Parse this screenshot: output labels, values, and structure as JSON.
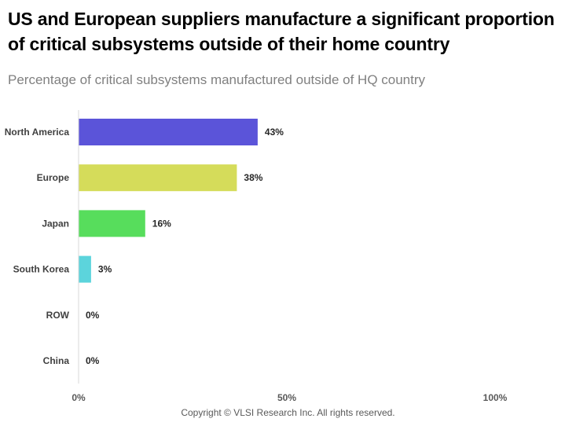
{
  "title": "US and European suppliers manufacture a significant proportion of critical subsystems outside of their home country",
  "subtitle": "Percentage of critical subsystems manufactured outside of HQ country",
  "copyright": "Copyright © VLSI Research Inc.  All rights reserved.",
  "chart_data": {
    "type": "bar",
    "orientation": "horizontal",
    "categories": [
      "North America",
      "Europe",
      "Japan",
      "South Korea",
      "ROW",
      "China"
    ],
    "values": [
      43,
      38,
      16,
      3,
      0,
      0
    ],
    "data_labels": [
      "43%",
      "38%",
      "16%",
      "3%",
      "0%",
      "0%"
    ],
    "colors": [
      "#5b54d9",
      "#d5dc5a",
      "#57dd5c",
      "#5cd4dc",
      "#cccccc",
      "#cccccc"
    ],
    "xlim": [
      0,
      100
    ],
    "xticks": [
      0,
      50,
      100
    ],
    "xtick_labels": [
      "0%",
      "50%",
      "100%"
    ],
    "grid": false
  }
}
